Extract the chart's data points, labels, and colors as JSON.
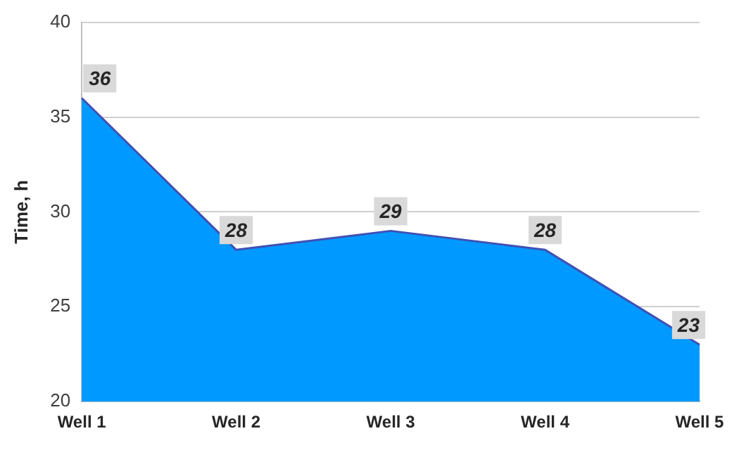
{
  "chart_data": {
    "type": "area",
    "ylabel": "Time, h",
    "categories": [
      "Well 1",
      "Well 2",
      "Well 3",
      "Well 4",
      "Well 5"
    ],
    "series": [
      {
        "color": "#0099ff",
        "values": [
          36,
          28,
          29,
          28,
          23
        ]
      }
    ],
    "ylim": [
      20,
      40
    ],
    "yticks": [
      20,
      25,
      30,
      35,
      40
    ],
    "grid": "y",
    "data_labels": true,
    "legend": false
  }
}
